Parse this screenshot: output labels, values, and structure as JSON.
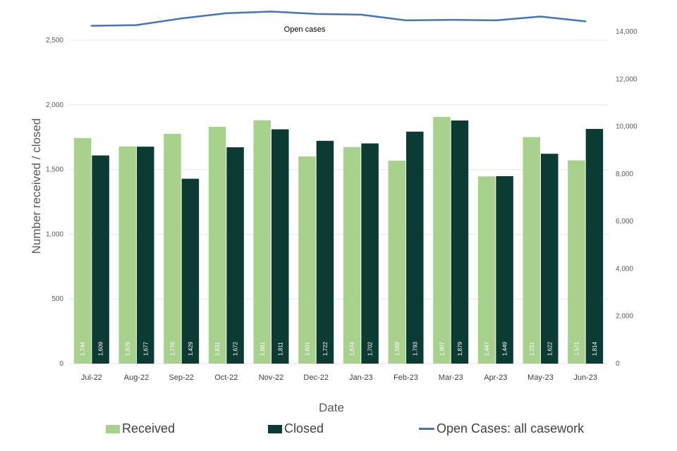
{
  "colors": {
    "received": "#a9d18e",
    "closed": "#0b3b32",
    "open_cases": "#4472c4",
    "gridline": "#e6e6e6"
  },
  "chart_data": {
    "type": "bar",
    "categories": [
      "Jul-22",
      "Aug-22",
      "Sep-22",
      "Oct-22",
      "Nov-22",
      "Dec-22",
      "Jan-23",
      "Feb-23",
      "Mar-23",
      "Apr-23",
      "May-23",
      "Jun-23"
    ],
    "series": [
      {
        "name": "Received",
        "type": "bar",
        "axis": "left",
        "values": [
          1744,
          1679,
          1776,
          1831,
          1881,
          1601,
          1674,
          1569,
          1907,
          1447,
          1751,
          1571
        ],
        "labels": [
          "1,744",
          "1,679",
          "1,776",
          "1,831",
          "1,881",
          "1,601",
          "1,674",
          "1,569",
          "1,907",
          "1,447",
          "1,751",
          "1,571"
        ]
      },
      {
        "name": "Closed",
        "type": "bar",
        "axis": "left",
        "values": [
          1609,
          1677,
          1429,
          1672,
          1811,
          1722,
          1702,
          1793,
          1879,
          1449,
          1622,
          1814
        ],
        "labels": [
          "1,609",
          "1,677",
          "1,429",
          "1,672",
          "1,811",
          "1,722",
          "1,702",
          "1,793",
          "1,879",
          "1,449",
          "1,622",
          "1,814"
        ]
      },
      {
        "name": "Open Cases: all casework",
        "type": "line",
        "axis": "right",
        "values": [
          14250,
          14280,
          14560,
          14780,
          14850,
          14750,
          14720,
          14480,
          14500,
          14480,
          14640,
          14440
        ]
      }
    ],
    "xlabel": "Date",
    "ylabel": "Number received / closed",
    "ylim": [
      0,
      2500
    ],
    "y2lim": [
      0,
      14000
    ],
    "yticks": [
      "0",
      "500",
      "1,000",
      "1,500",
      "2,000",
      "2,500"
    ],
    "y2ticks": [
      "0",
      "2,000",
      "4,000",
      "6,000",
      "8,000",
      "10,000",
      "12,000",
      "14,000"
    ],
    "annotation": "Open cases",
    "grid": true,
    "legend_position": "bottom"
  },
  "legend": {
    "received": "Received",
    "closed": "Closed",
    "open_cases": "Open Cases: all casework"
  }
}
